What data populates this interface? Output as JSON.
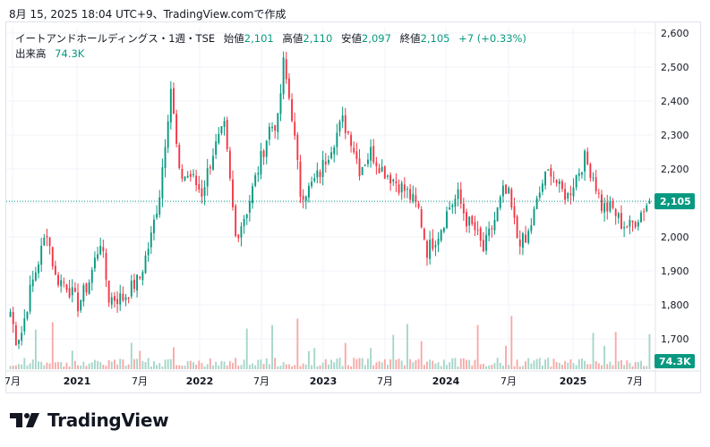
{
  "header": {
    "timestamp": "8月 15, 2025 18:04 UTC+9、TradingView.comで作成"
  },
  "legend": {
    "symbol": "イートアンドホールディングス・1週・TSE",
    "open_label": "始値",
    "open": "2,101",
    "high_label": "高値",
    "high": "2,110",
    "low_label": "安値",
    "low": "2,097",
    "close_label": "終値",
    "close": "2,105",
    "change": "+7 (+0.33%)",
    "volume_label": "出来高",
    "volume": "74.3K"
  },
  "price_badge": "2,105",
  "volume_badge": "74.3K",
  "brand": "TradingView",
  "colors": {
    "up": "#089981",
    "down": "#f23645",
    "up_vol": "#a5d6c9",
    "down_vol": "#f7a9a7",
    "badge": "#089981",
    "grid": "#f0f3fa"
  },
  "chart_data": {
    "type": "candlestick",
    "title": "イートアンドホールディングス・1週・TSE",
    "y_ticks": [
      "2,600",
      "2,500",
      "2,400",
      "2,300",
      "2,200",
      "2,100",
      "2,000",
      "1,900",
      "1,800",
      "1,700"
    ],
    "ylim": [
      1660,
      2630
    ],
    "x_ticks": [
      "7月",
      "2021",
      "7月",
      "2022",
      "7月",
      "2023",
      "7月",
      "2024",
      "7月",
      "2025",
      "7月"
    ],
    "last_close": 2105,
    "path_anchors": [
      [
        0,
        1780
      ],
      [
        2,
        1700
      ],
      [
        4,
        1720
      ],
      [
        7,
        1840
      ],
      [
        11,
        1960
      ],
      [
        13,
        2020
      ],
      [
        16,
        1880
      ],
      [
        20,
        1860
      ],
      [
        24,
        1800
      ],
      [
        28,
        1870
      ],
      [
        32,
        1990
      ],
      [
        35,
        1820
      ],
      [
        40,
        1820
      ],
      [
        46,
        1880
      ],
      [
        50,
        2000
      ],
      [
        53,
        2130
      ],
      [
        57,
        2440
      ],
      [
        60,
        2180
      ],
      [
        64,
        2180
      ],
      [
        68,
        2130
      ],
      [
        72,
        2250
      ],
      [
        76,
        2320
      ],
      [
        80,
        2000
      ],
      [
        84,
        2080
      ],
      [
        88,
        2200
      ],
      [
        92,
        2320
      ],
      [
        95,
        2340
      ],
      [
        97,
        2510
      ],
      [
        100,
        2360
      ],
      [
        103,
        2130
      ],
      [
        106,
        2140
      ],
      [
        110,
        2190
      ],
      [
        114,
        2270
      ],
      [
        118,
        2340
      ],
      [
        121,
        2290
      ],
      [
        124,
        2200
      ],
      [
        128,
        2250
      ],
      [
        132,
        2200
      ],
      [
        136,
        2170
      ],
      [
        141,
        2130
      ],
      [
        145,
        2080
      ],
      [
        148,
        1960
      ],
      [
        152,
        2010
      ],
      [
        156,
        2090
      ],
      [
        159,
        2120
      ],
      [
        162,
        2050
      ],
      [
        165,
        2020
      ],
      [
        168,
        1960
      ],
      [
        172,
        2050
      ],
      [
        175,
        2130
      ],
      [
        177,
        2120
      ],
      [
        180,
        2000
      ],
      [
        183,
        1980
      ],
      [
        186,
        2070
      ],
      [
        189,
        2160
      ],
      [
        192,
        2200
      ],
      [
        195,
        2140
      ],
      [
        198,
        2120
      ],
      [
        201,
        2180
      ],
      [
        204,
        2230
      ],
      [
        207,
        2180
      ],
      [
        210,
        2090
      ],
      [
        214,
        2080
      ],
      [
        217,
        2040
      ],
      [
        220,
        2030
      ],
      [
        223,
        2060
      ],
      [
        227,
        2110
      ]
    ]
  }
}
